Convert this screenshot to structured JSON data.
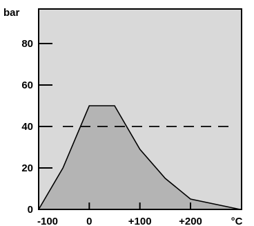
{
  "chart_data": {
    "type": "area",
    "ylabel": "bar",
    "xunit": "°C",
    "xlim": [
      -100,
      200
    ],
    "ylim": [
      0,
      100
    ],
    "x_ticks": [
      -100,
      0,
      100,
      200
    ],
    "x_tick_labels": [
      "-100",
      "0",
      "+100",
      "+200"
    ],
    "y_ticks": [
      0,
      20,
      40,
      60,
      80
    ],
    "y_tick_labels": [
      "0",
      "20",
      "40",
      "60",
      "80"
    ],
    "reference_line": {
      "y": 40,
      "style": "dashed"
    },
    "grid": false,
    "series": [
      {
        "x": [
          -100,
          -52,
          0,
          50,
          100,
          150,
          200,
          298
        ],
        "y": [
          0,
          20,
          50,
          50,
          29,
          15,
          5,
          0
        ],
        "fill": "#b4b4b4",
        "stroke": "#000000"
      }
    ]
  },
  "colors": {
    "plot_background": "#d9d9d9",
    "area_fill": "#b4b4b4",
    "axis": "#000000"
  }
}
